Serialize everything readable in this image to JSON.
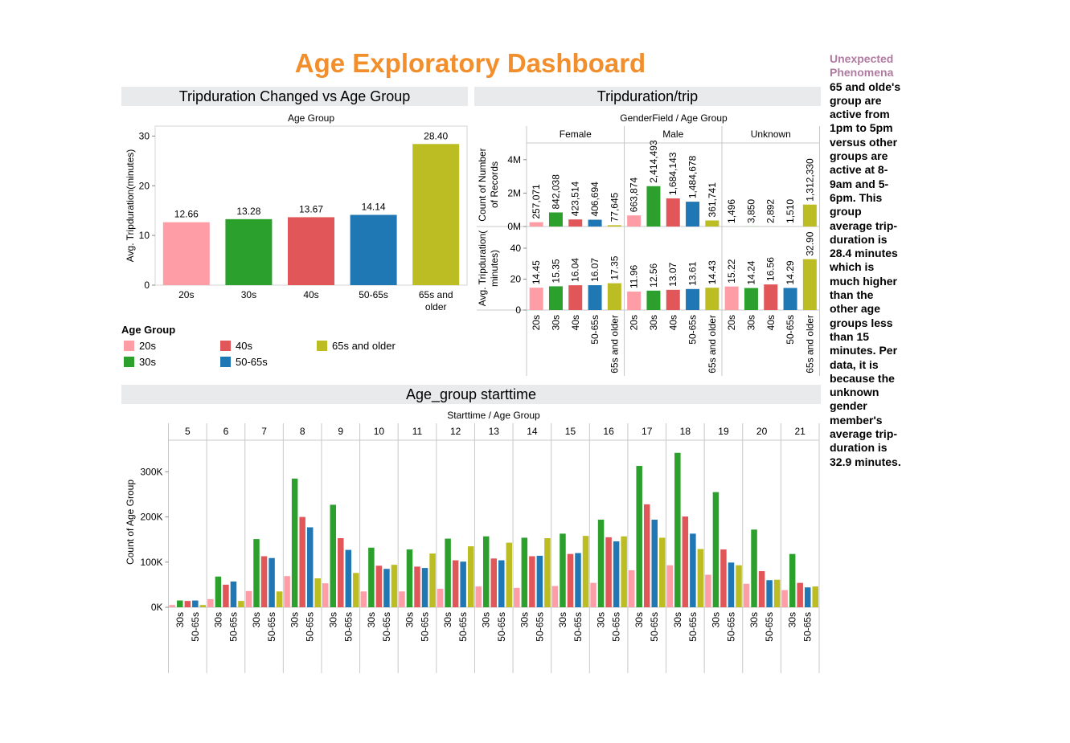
{
  "dashboard": {
    "title": "Age Exploratory Dashboard"
  },
  "side_note": {
    "title": "Unexpected Phenomena",
    "body": "65  and olde's group are active from 1pm to 5pm versus other groups are active at 8-9am and 5-6pm. This group average trip-duration is 28.4 minutes which is much higher than the other age groups less than 15 minutes. Per data, it is because the unknown gender member's average trip-duration is 32.9 minutes."
  },
  "colors": {
    "20s": "#ff9da7",
    "30s": "#2ca02c",
    "40s": "#e15759",
    "50-65s": "#1f77b4",
    "65s and older": "#bcbd22",
    "title": "#f28e2b",
    "note_title": "#b07aa1"
  },
  "legend": {
    "title": "Age Group",
    "items": [
      "20s",
      "30s",
      "40s",
      "50-65s",
      "65s and older"
    ]
  },
  "chart_data": [
    {
      "id": "chart1",
      "type": "bar",
      "title": "Tripduration Changed vs Age Group",
      "column_header": "Age Group",
      "ylabel": "Avg. Tripduration(minutes)",
      "ylim": [
        0,
        32
      ],
      "yticks": [
        0,
        10,
        20,
        30
      ],
      "categories": [
        "20s",
        "30s",
        "40s",
        "50-65s",
        "65s and older"
      ],
      "values": [
        12.66,
        13.28,
        13.67,
        14.14,
        28.4
      ],
      "labels": [
        "12.66",
        "13.28",
        "13.67",
        "14.14",
        "28.40"
      ]
    },
    {
      "id": "chart2",
      "type": "bar",
      "title": "Tripduration/trip",
      "column_header": "GenderField  /  Age Group",
      "panels": [
        "Female",
        "Male",
        "Unknown"
      ],
      "categories": [
        "20s",
        "30s",
        "40s",
        "50-65s",
        "65s and older"
      ],
      "rows": [
        {
          "ylabel": "Count of Number of Records",
          "ylim": [
            0,
            5000000
          ],
          "yticks": [
            0,
            2000000,
            4000000
          ],
          "ytick_labels": [
            "0M",
            "2M",
            "4M"
          ],
          "series": [
            {
              "panel": "Female",
              "values": [
                257071,
                842038,
                423514,
                406694,
                77645
              ],
              "labels": [
                "257,071",
                "842,038",
                "423,514",
                "406,694",
                "77,645"
              ]
            },
            {
              "panel": "Male",
              "values": [
                663874,
                2414493,
                1684143,
                1484678,
                361741
              ],
              "labels": [
                "663,874",
                "2,414,493",
                "1,684,143",
                "1,484,678",
                "361,741"
              ]
            },
            {
              "panel": "Unknown",
              "values": [
                1496,
                3850,
                2892,
                1510,
                1312330
              ],
              "labels": [
                "1,496",
                "3,850",
                "2,892",
                "1,510",
                "1,312,330"
              ]
            }
          ]
        },
        {
          "ylabel": "Avg. Tripduration( minutes)",
          "ylim": [
            0,
            54
          ],
          "yticks": [
            0,
            20,
            40
          ],
          "ytick_labels": [
            "0",
            "20",
            "40"
          ],
          "series": [
            {
              "panel": "Female",
              "values": [
                14.45,
                15.35,
                16.04,
                16.07,
                17.35
              ],
              "labels": [
                "14.45",
                "15.35",
                "16.04",
                "16.07",
                "17.35"
              ]
            },
            {
              "panel": "Male",
              "values": [
                11.96,
                12.56,
                13.07,
                13.61,
                14.43
              ],
              "labels": [
                "11.96",
                "12.56",
                "13.07",
                "13.61",
                "14.43"
              ]
            },
            {
              "panel": "Unknown",
              "values": [
                15.22,
                14.24,
                16.56,
                14.29,
                32.9
              ],
              "labels": [
                "15.22",
                "14.24",
                "16.56",
                "14.29",
                "32.90"
              ]
            }
          ]
        }
      ]
    },
    {
      "id": "chart3",
      "type": "bar",
      "title": "Age_group starttime",
      "column_header": "Starttime  /  Age Group",
      "ylabel": "Count of Age Group",
      "ylim": [
        0,
        370000
      ],
      "yticks": [
        0,
        100000,
        200000,
        300000
      ],
      "ytick_labels": [
        "0K",
        "100K",
        "200K",
        "300K"
      ],
      "x_tick_labels": [
        "30s",
        "50-65s"
      ],
      "categories": [
        "20s",
        "30s",
        "40s",
        "50-65s",
        "65s and older"
      ],
      "hours": [
        "5",
        "6",
        "7",
        "8",
        "9",
        "10",
        "11",
        "12",
        "13",
        "14",
        "15",
        "16",
        "17",
        "18",
        "19",
        "20",
        "21"
      ],
      "values": [
        [
          5000,
          15000,
          14000,
          15000,
          5000
        ],
        [
          18000,
          68000,
          50000,
          57000,
          14000
        ],
        [
          36000,
          151000,
          113000,
          109000,
          35000
        ],
        [
          69000,
          285000,
          200000,
          177000,
          64000
        ],
        [
          53000,
          227000,
          153000,
          127000,
          76000
        ],
        [
          35000,
          132000,
          92000,
          85000,
          94000
        ],
        [
          35000,
          128000,
          90000,
          87000,
          119000
        ],
        [
          41000,
          152000,
          104000,
          101000,
          135000
        ],
        [
          46000,
          157000,
          108000,
          104000,
          143000
        ],
        [
          43000,
          154000,
          113000,
          114000,
          153000
        ],
        [
          47000,
          163000,
          118000,
          120000,
          158000
        ],
        [
          54000,
          194000,
          155000,
          146000,
          157000
        ],
        [
          82000,
          313000,
          228000,
          194000,
          154000
        ],
        [
          93000,
          342000,
          201000,
          163000,
          129000
        ],
        [
          72000,
          255000,
          128000,
          99000,
          93000
        ],
        [
          52000,
          172000,
          80000,
          60000,
          61000
        ],
        [
          38000,
          118000,
          54000,
          44000,
          46000
        ]
      ]
    }
  ]
}
